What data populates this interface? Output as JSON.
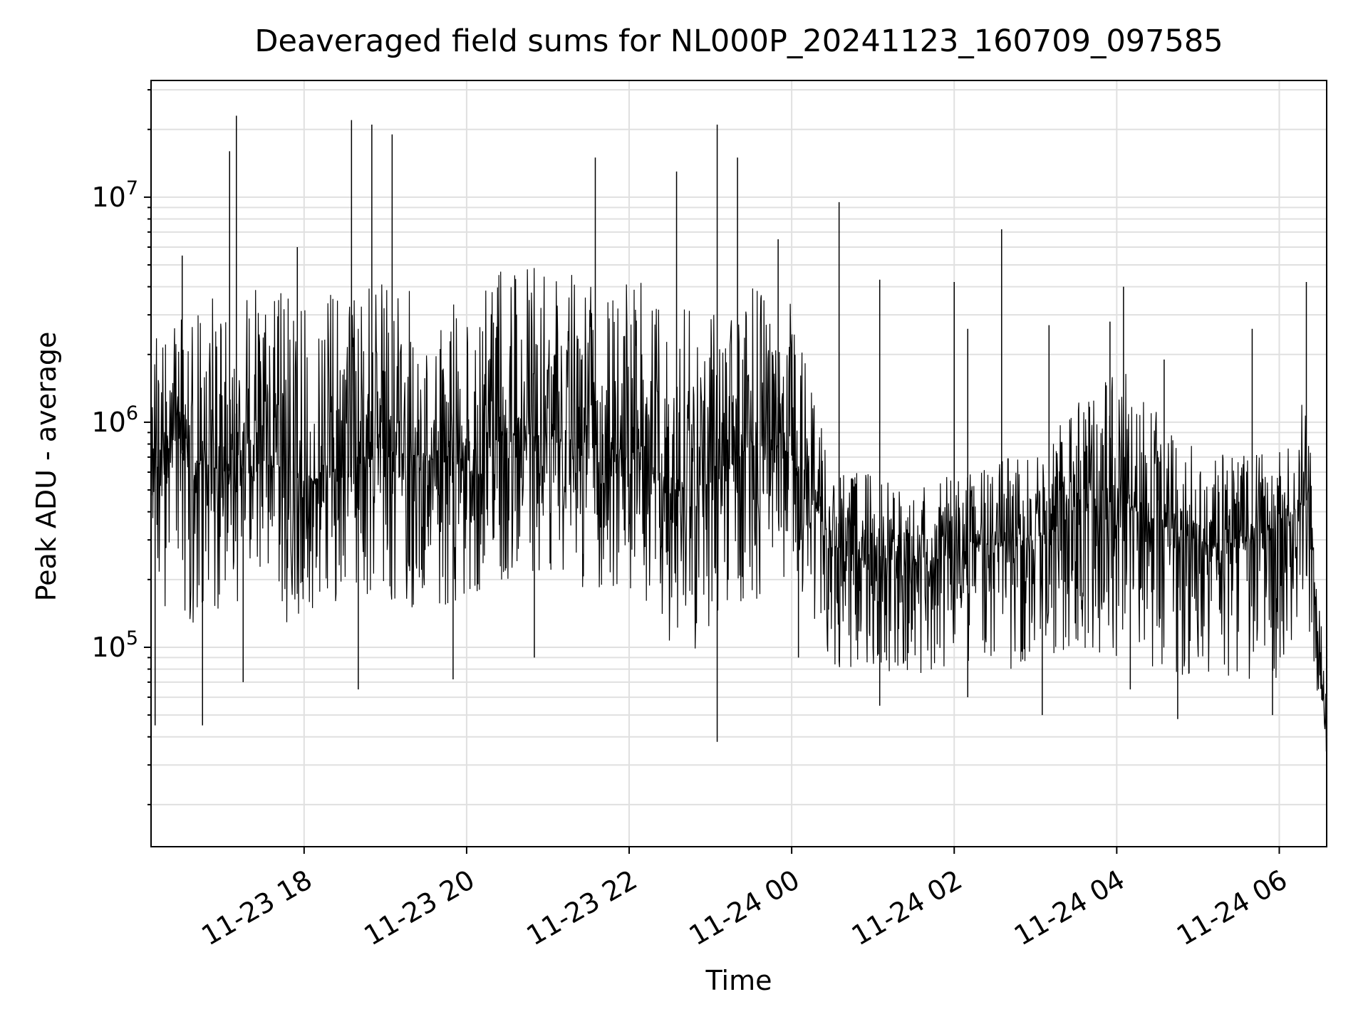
{
  "chart_data": {
    "type": "line",
    "title": "Deaveraged field sums for NL000P_20241123_160709_097585",
    "xlabel": "Time",
    "ylabel": "Peak ADU - average",
    "yscale": "log",
    "ylim": [
      13000,
      33000000
    ],
    "xlim": [
      "2024-11-23 16:07",
      "2024-11-24 06:35"
    ],
    "grid": true,
    "line_color": "#000000",
    "grid_color": "#e0e0e0",
    "x_ticks": [
      {
        "value": "2024-11-23 18:00",
        "label": "11-23 18"
      },
      {
        "value": "2024-11-23 20:00",
        "label": "11-23 20"
      },
      {
        "value": "2024-11-23 22:00",
        "label": "11-23 22"
      },
      {
        "value": "2024-11-24 00:00",
        "label": "11-24 00"
      },
      {
        "value": "2024-11-24 02:00",
        "label": "11-24 02"
      },
      {
        "value": "2024-11-24 04:00",
        "label": "11-24 04"
      },
      {
        "value": "2024-11-24 06:00",
        "label": "11-24 06"
      }
    ],
    "y_ticks": [
      {
        "value": 100000,
        "base": "10",
        "exp": "5"
      },
      {
        "value": 1000000,
        "base": "10",
        "exp": "6"
      },
      {
        "value": 10000000,
        "base": "10",
        "exp": "7"
      }
    ],
    "series": [
      {
        "x": [
          "2024-11-23 16:07",
          "2024-11-23 16:30",
          "2024-11-23 17:00",
          "2024-11-23 17:30",
          "2024-11-23 18:00",
          "2024-11-23 18:30",
          "2024-11-23 19:00",
          "2024-11-23 19:30",
          "2024-11-23 20:00",
          "2024-11-23 20:30",
          "2024-11-23 21:00",
          "2024-11-23 21:30",
          "2024-11-23 22:00",
          "2024-11-23 22:30",
          "2024-11-23 23:00",
          "2024-11-23 23:30",
          "2024-11-24 00:00",
          "2024-11-24 00:30",
          "2024-11-24 01:00",
          "2024-11-24 01:30",
          "2024-11-24 02:00",
          "2024-11-24 02:30",
          "2024-11-24 03:00",
          "2024-11-24 03:30",
          "2024-11-24 04:00",
          "2024-11-24 04:30",
          "2024-11-24 05:00",
          "2024-11-24 05:30",
          "2024-11-24 06:00",
          "2024-11-24 06:20",
          "2024-11-24 06:35"
        ],
        "center": [
          800000,
          750000,
          600000,
          650000,
          550000,
          600000,
          750000,
          700000,
          650000,
          900000,
          850000,
          800000,
          750000,
          500000,
          550000,
          800000,
          750000,
          280000,
          260000,
          230000,
          260000,
          290000,
          300000,
          400000,
          450000,
          350000,
          300000,
          280000,
          350000,
          450000,
          40000
        ],
        "spread_low": [
          150000,
          120000,
          150000,
          140000,
          120000,
          150000,
          150000,
          150000,
          150000,
          200000,
          200000,
          180000,
          180000,
          100000,
          90000,
          150000,
          180000,
          80000,
          70000,
          70000,
          80000,
          80000,
          80000,
          90000,
          90000,
          80000,
          70000,
          70000,
          70000,
          150000,
          30000
        ],
        "spread_high": [
          3500000,
          4000000,
          3500000,
          4000000,
          3500000,
          4000000,
          4500000,
          4000000,
          3500000,
          5000000,
          5000000,
          4500000,
          4500000,
          3500000,
          3000000,
          4000000,
          3500000,
          600000,
          600000,
          500000,
          650000,
          700000,
          700000,
          1200000,
          1800000,
          1200000,
          800000,
          700000,
          800000,
          1500000,
          60000
        ]
      }
    ],
    "spikes": [
      {
        "x": "2024-11-23 16:10",
        "y": 45000
      },
      {
        "x": "2024-11-23 16:30",
        "y": 5500000
      },
      {
        "x": "2024-11-23 16:45",
        "y": 45000
      },
      {
        "x": "2024-11-23 17:05",
        "y": 16000000
      },
      {
        "x": "2024-11-23 17:10",
        "y": 23000000
      },
      {
        "x": "2024-11-23 17:15",
        "y": 70000
      },
      {
        "x": "2024-11-23 17:55",
        "y": 6000000
      },
      {
        "x": "2024-11-23 18:35",
        "y": 22000000
      },
      {
        "x": "2024-11-23 18:40",
        "y": 65000
      },
      {
        "x": "2024-11-23 18:50",
        "y": 21000000
      },
      {
        "x": "2024-11-23 19:05",
        "y": 19000000
      },
      {
        "x": "2024-11-23 19:50",
        "y": 72000
      },
      {
        "x": "2024-11-23 20:50",
        "y": 90000
      },
      {
        "x": "2024-11-23 21:35",
        "y": 15000000
      },
      {
        "x": "2024-11-23 22:35",
        "y": 13000000
      },
      {
        "x": "2024-11-23 23:05",
        "y": 21000000
      },
      {
        "x": "2024-11-23 23:05",
        "y": 38000
      },
      {
        "x": "2024-11-23 23:20",
        "y": 15000000
      },
      {
        "x": "2024-11-23 23:50",
        "y": 6500000
      },
      {
        "x": "2024-11-24 00:05",
        "y": 90000
      },
      {
        "x": "2024-11-24 00:35",
        "y": 9500000
      },
      {
        "x": "2024-11-24 01:05",
        "y": 4300000
      },
      {
        "x": "2024-11-24 01:05",
        "y": 55000
      },
      {
        "x": "2024-11-24 02:00",
        "y": 4200000
      },
      {
        "x": "2024-11-24 02:10",
        "y": 60000
      },
      {
        "x": "2024-11-24 02:10",
        "y": 2600000
      },
      {
        "x": "2024-11-24 02:35",
        "y": 7200000
      },
      {
        "x": "2024-11-24 03:05",
        "y": 50000
      },
      {
        "x": "2024-11-24 03:10",
        "y": 2700000
      },
      {
        "x": "2024-11-24 03:55",
        "y": 2800000
      },
      {
        "x": "2024-11-24 04:05",
        "y": 4000000
      },
      {
        "x": "2024-11-24 04:10",
        "y": 65000
      },
      {
        "x": "2024-11-24 04:35",
        "y": 1900000
      },
      {
        "x": "2024-11-24 04:45",
        "y": 48000
      },
      {
        "x": "2024-11-24 05:40",
        "y": 2600000
      },
      {
        "x": "2024-11-24 05:55",
        "y": 50000
      },
      {
        "x": "2024-11-24 06:20",
        "y": 4200000
      },
      {
        "x": "2024-11-24 06:35",
        "y": 28000
      }
    ]
  }
}
